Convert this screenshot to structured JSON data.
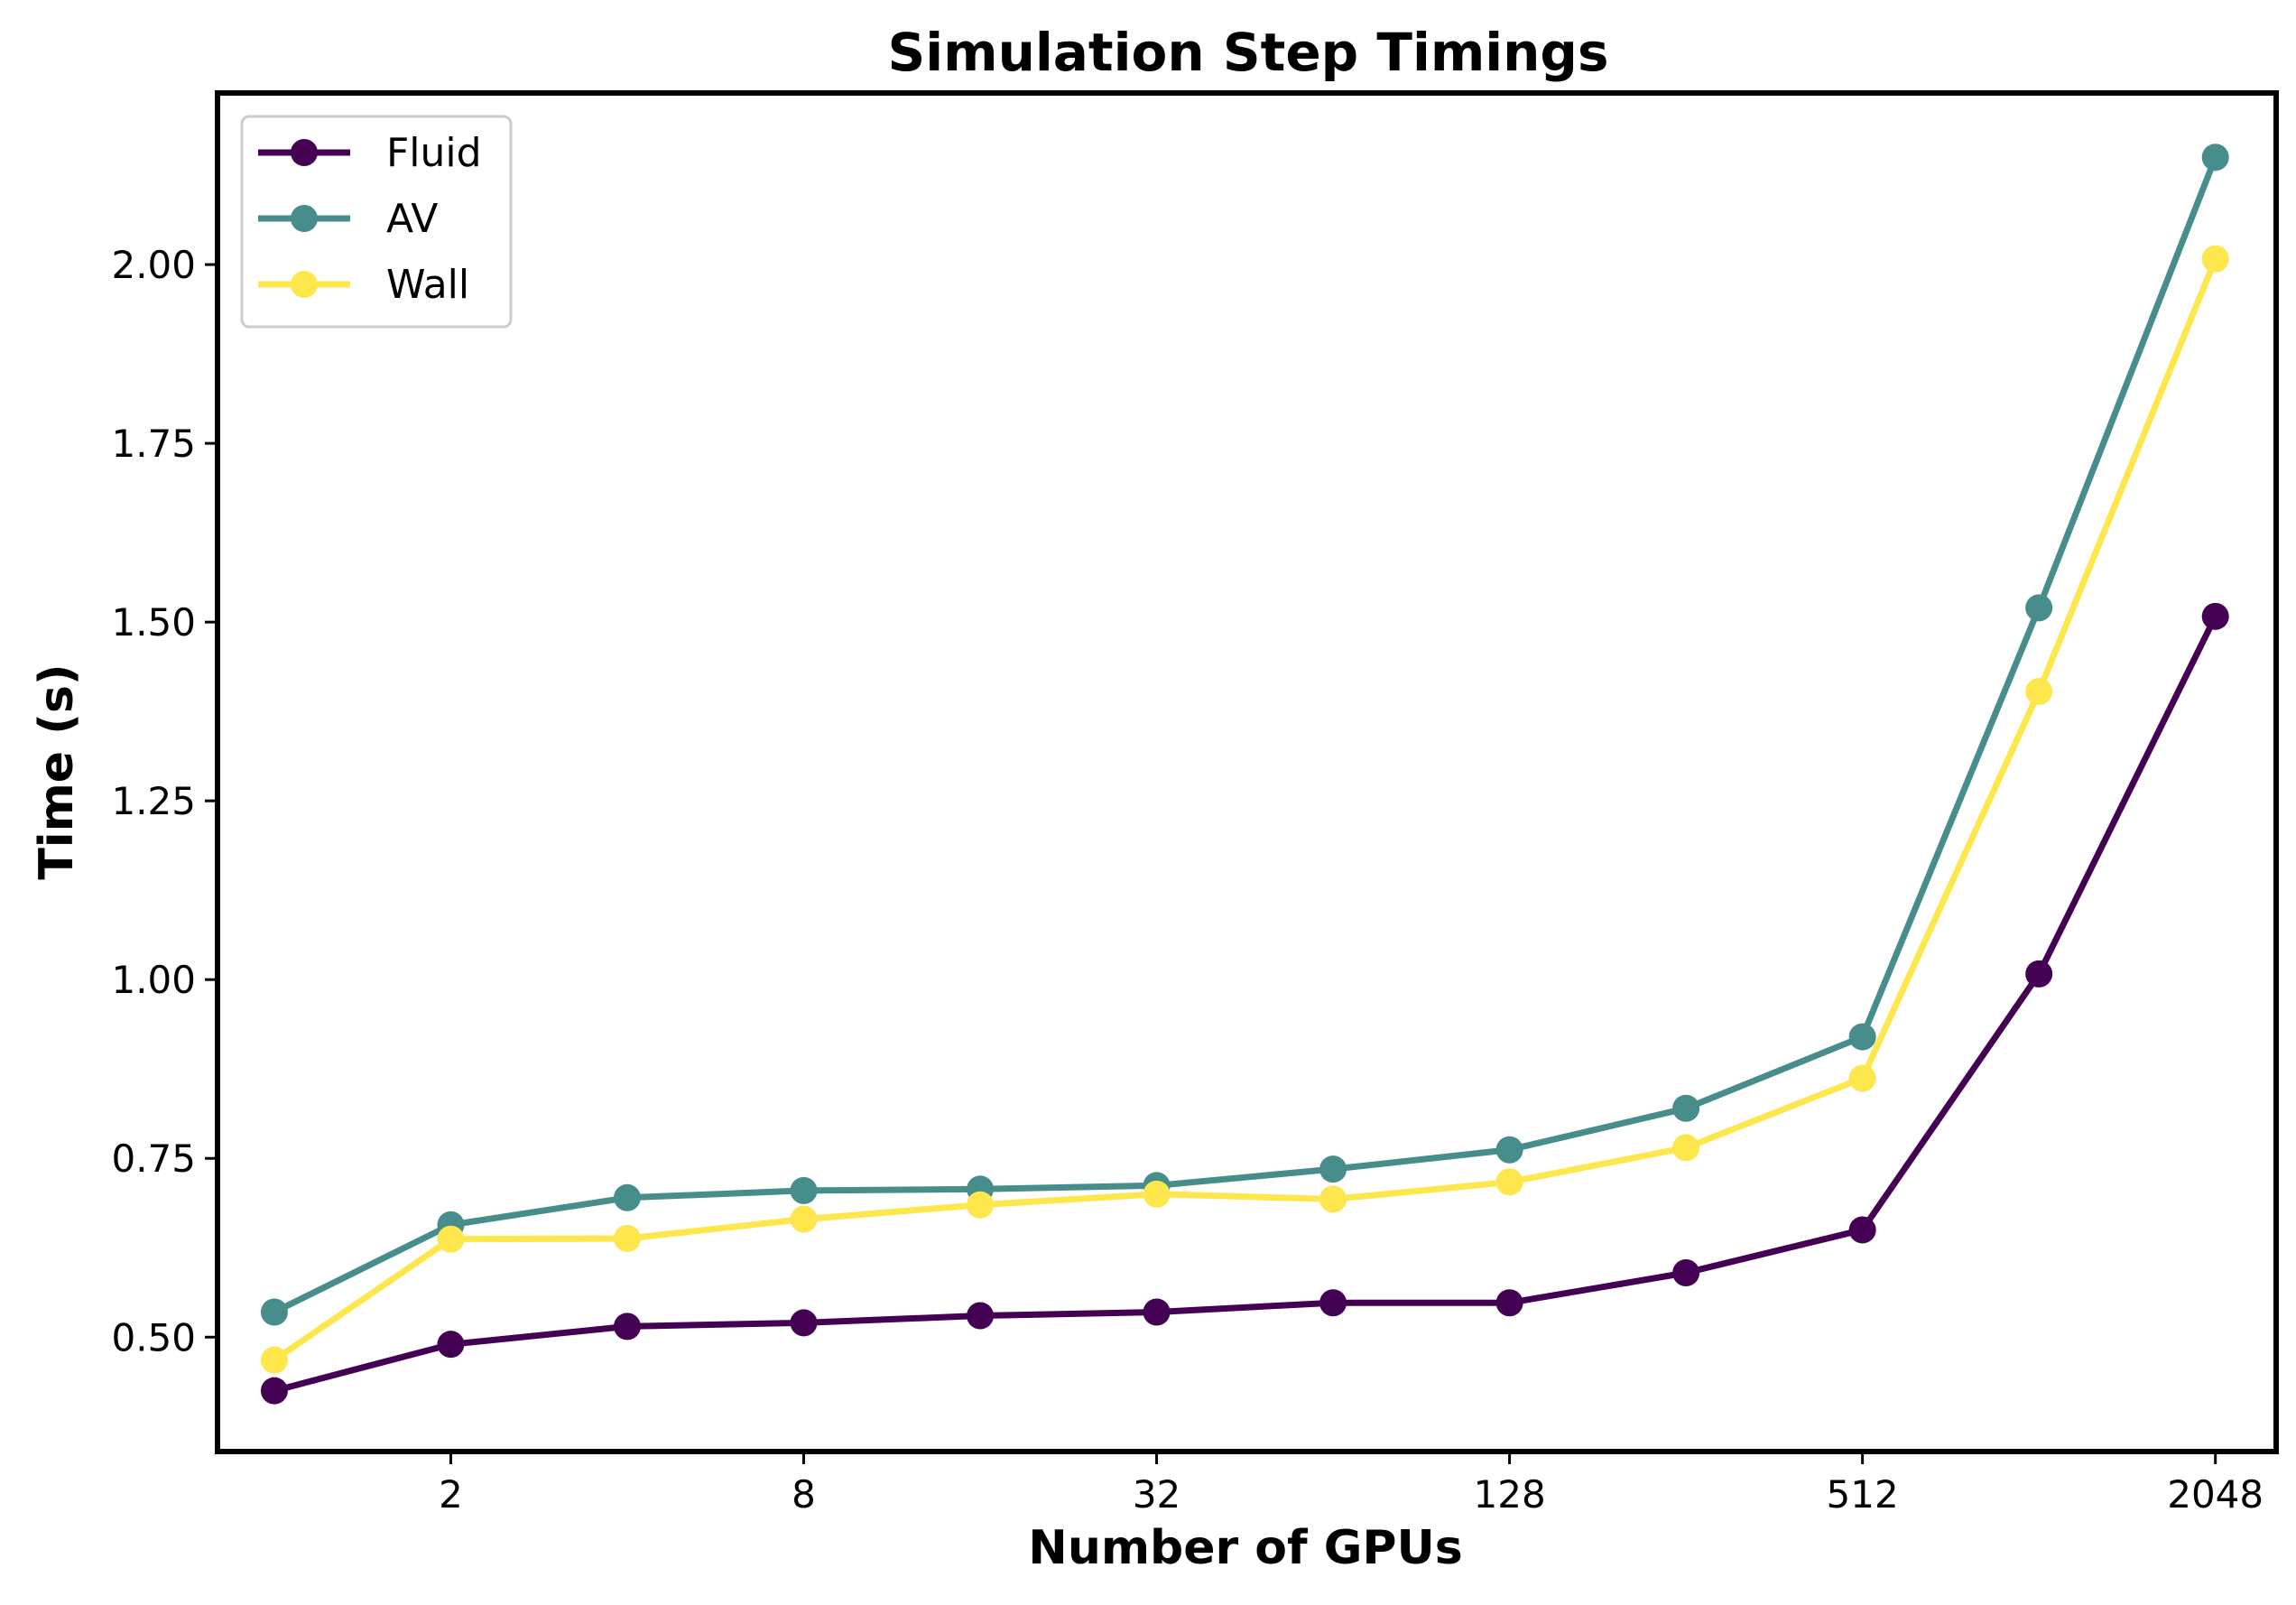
{
  "chart_data": {
    "type": "line",
    "title": "Simulation Step Timings",
    "xlabel": "Number of GPUs",
    "ylabel": "Time (s)",
    "x_scale": "log2",
    "x": [
      1,
      2,
      4,
      8,
      16,
      32,
      64,
      128,
      256,
      512,
      1024,
      2048
    ],
    "x_ticks": [
      2,
      8,
      32,
      128,
      512,
      2048
    ],
    "x_tick_labels": [
      "2",
      "8",
      "32",
      "128",
      "512",
      "2048"
    ],
    "y_ticks": [
      0.5,
      0.75,
      1.0,
      1.25,
      1.5,
      1.75,
      2.0
    ],
    "y_tick_labels": [
      "0.50",
      "0.75",
      "1.00",
      "1.25",
      "1.50",
      "1.75",
      "2.00"
    ],
    "xlim": [
      0.8,
      2600
    ],
    "ylim": [
      0.34,
      2.24
    ],
    "grid": false,
    "legend_position": "top-left",
    "series": [
      {
        "name": "Fluid",
        "color": "#440154",
        "values": [
          0.425,
          0.49,
          0.515,
          0.52,
          0.53,
          0.535,
          0.548,
          0.548,
          0.59,
          0.65,
          1.008,
          1.508
        ]
      },
      {
        "name": "AV",
        "color": "#478d8b",
        "values": [
          0.535,
          0.657,
          0.695,
          0.705,
          0.707,
          0.712,
          0.735,
          0.762,
          0.82,
          0.92,
          1.52,
          2.15
        ]
      },
      {
        "name": "Wall",
        "color": "#fde74c",
        "values": [
          0.468,
          0.637,
          0.638,
          0.665,
          0.685,
          0.7,
          0.693,
          0.717,
          0.765,
          0.862,
          1.403,
          2.008
        ]
      }
    ]
  }
}
